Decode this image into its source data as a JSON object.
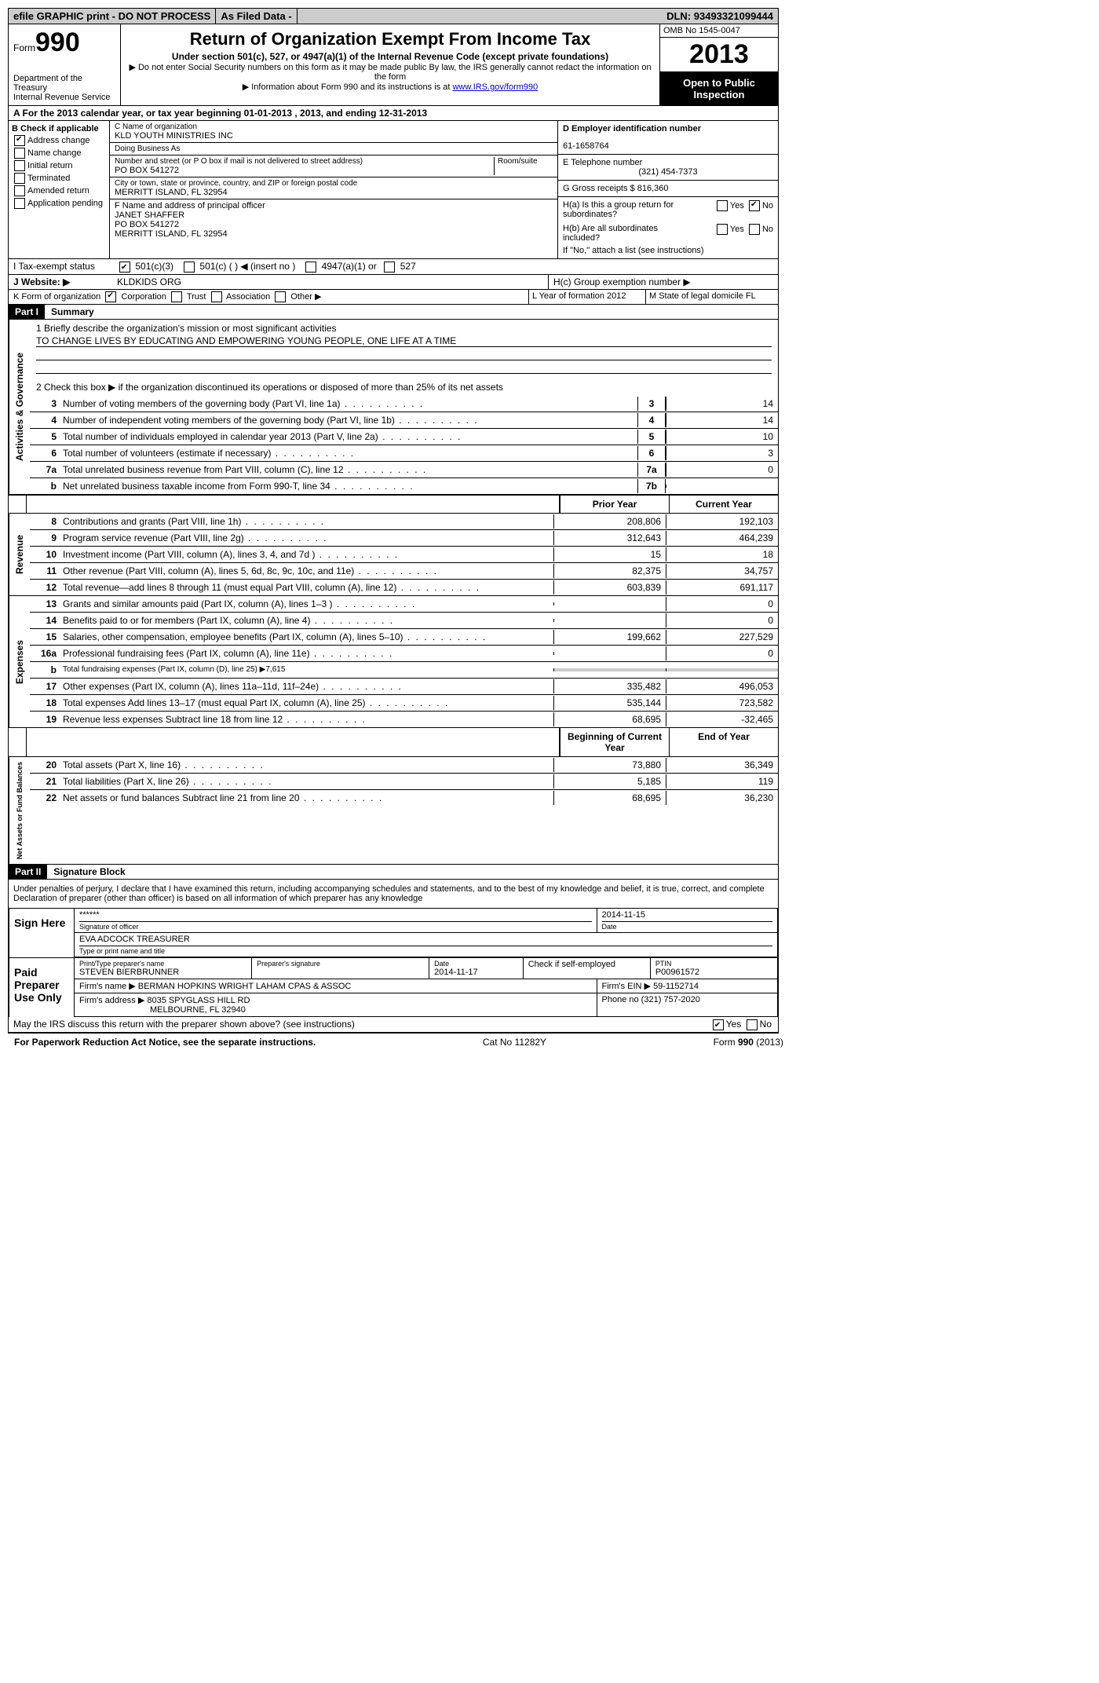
{
  "topbar": {
    "efile": "efile GRAPHIC print - DO NOT PROCESS",
    "asfiled": "As Filed Data -",
    "dln_label": "DLN:",
    "dln": "93493321099444"
  },
  "header": {
    "form_word": "Form",
    "form_num": "990",
    "dept": "Department of the Treasury",
    "irs": "Internal Revenue Service",
    "title": "Return of Organization Exempt From Income Tax",
    "subtitle": "Under section 501(c), 527, or 4947(a)(1) of the Internal Revenue Code (except private foundations)",
    "note1": "▶ Do not enter Social Security numbers on this form as it may be made public  By law, the IRS generally cannot redact the information on the form",
    "note2_pre": "▶ Information about Form 990 and its instructions is at ",
    "note2_link": "www.IRS.gov/form990",
    "omb": "OMB No  1545-0047",
    "year": "2013",
    "open": "Open to Public Inspection"
  },
  "section_a": "A  For the 2013 calendar year, or tax year beginning 01-01-2013     , 2013, and ending 12-31-2013",
  "col_b": {
    "header": "B  Check if applicable",
    "items": [
      {
        "label": "Address change",
        "checked": true
      },
      {
        "label": "Name change",
        "checked": false
      },
      {
        "label": "Initial return",
        "checked": false
      },
      {
        "label": "Terminated",
        "checked": false
      },
      {
        "label": "Amended return",
        "checked": false
      },
      {
        "label": "Application pending",
        "checked": false
      }
    ]
  },
  "col_c": {
    "name_label": "C Name of organization",
    "name": "KLD YOUTH MINISTRIES INC",
    "dba_label": "Doing Business As",
    "dba": "",
    "addr_label": "Number and street (or P O  box if mail is not delivered to street address)",
    "room_label": "Room/suite",
    "addr": "PO BOX 541272",
    "city_label": "City or town, state or province, country, and ZIP or foreign postal code",
    "city": "MERRITT ISLAND, FL  32954",
    "f_label": "F   Name and address of principal officer",
    "f_name": "JANET SHAFFER",
    "f_addr1": "PO BOX 541272",
    "f_addr2": "MERRITT ISLAND, FL  32954"
  },
  "col_d": {
    "ein_label": "D Employer identification number",
    "ein": "61-1658764",
    "tel_label": "E Telephone number",
    "tel": "(321) 454-7373",
    "gross_label": "G Gross receipts $",
    "gross": "816,360",
    "ha_label": "H(a)  Is this a group return for subordinates?",
    "ha_no_checked": true,
    "hb_label": "H(b)  Are all subordinates included?",
    "hb_note": "If \"No,\" attach a list  (see instructions)",
    "hc_label": "H(c)   Group exemption number ▶"
  },
  "row_i": {
    "label": "I   Tax-exempt status",
    "c3": "501(c)(3)",
    "c": "501(c) (  ) ◀ (insert no )",
    "a4947": "4947(a)(1) or",
    "s527": "527"
  },
  "row_j": {
    "label": "J   Website: ▶",
    "value": "KLDKIDS ORG"
  },
  "row_k": {
    "label": "K Form of organization",
    "corp": "Corporation",
    "trust": "Trust",
    "assoc": "Association",
    "other": "Other ▶",
    "l_label": "L Year of formation",
    "l_val": "2012",
    "m_label": "M State of legal domicile",
    "m_val": "FL"
  },
  "part1": {
    "header": "Part I",
    "title": "Summary",
    "mission_label": "1    Briefly describe the organization's mission or most significant activities",
    "mission": "TO CHANGE LIVES BY EDUCATING AND EMPOWERING YOUNG PEOPLE, ONE LIFE AT A TIME",
    "line2": "2    Check this box ▶      if the organization discontinued its operations or disposed of more than 25% of its net assets",
    "governance": [
      {
        "n": "3",
        "d": "Number of voting members of the governing body (Part VI, line 1a)",
        "ref": "3",
        "v": "14"
      },
      {
        "n": "4",
        "d": "Number of independent voting members of the governing body (Part VI, line 1b)",
        "ref": "4",
        "v": "14"
      },
      {
        "n": "5",
        "d": "Total number of individuals employed in calendar year 2013 (Part V, line 2a)",
        "ref": "5",
        "v": "10"
      },
      {
        "n": "6",
        "d": "Total number of volunteers (estimate if necessary)",
        "ref": "6",
        "v": "3"
      },
      {
        "n": "7a",
        "d": "Total unrelated business revenue from Part VIII, column (C), line 12",
        "ref": "7a",
        "v": "0"
      },
      {
        "n": "b",
        "d": "Net unrelated business taxable income from Form 990-T, line 34",
        "ref": "7b",
        "v": ""
      }
    ],
    "col_prior": "Prior Year",
    "col_curr": "Current Year",
    "revenue": [
      {
        "n": "8",
        "d": "Contributions and grants (Part VIII, line 1h)",
        "p": "208,806",
        "c": "192,103"
      },
      {
        "n": "9",
        "d": "Program service revenue (Part VIII, line 2g)",
        "p": "312,643",
        "c": "464,239"
      },
      {
        "n": "10",
        "d": "Investment income (Part VIII, column (A), lines 3, 4, and 7d )",
        "p": "15",
        "c": "18"
      },
      {
        "n": "11",
        "d": "Other revenue (Part VIII, column (A), lines 5, 6d, 8c, 9c, 10c, and 11e)",
        "p": "82,375",
        "c": "34,757"
      },
      {
        "n": "12",
        "d": "Total revenue—add lines 8 through 11 (must equal Part VIII, column (A), line 12)",
        "p": "603,839",
        "c": "691,117"
      }
    ],
    "expenses": [
      {
        "n": "13",
        "d": "Grants and similar amounts paid (Part IX, column (A), lines 1–3 )",
        "p": "",
        "c": "0"
      },
      {
        "n": "14",
        "d": "Benefits paid to or for members (Part IX, column (A), line 4)",
        "p": "",
        "c": "0"
      },
      {
        "n": "15",
        "d": "Salaries, other compensation, employee benefits (Part IX, column (A), lines 5–10)",
        "p": "199,662",
        "c": "227,529"
      },
      {
        "n": "16a",
        "d": "Professional fundraising fees (Part IX, column (A), line 11e)",
        "p": "",
        "c": "0"
      },
      {
        "n": "b",
        "d": "Total fundraising expenses (Part IX, column (D), line 25) ▶7,615",
        "p": "—",
        "c": "—"
      },
      {
        "n": "17",
        "d": "Other expenses (Part IX, column (A), lines 11a–11d, 11f–24e)",
        "p": "335,482",
        "c": "496,053"
      },
      {
        "n": "18",
        "d": "Total expenses  Add lines 13–17 (must equal Part IX, column (A), line 25)",
        "p": "535,144",
        "c": "723,582"
      },
      {
        "n": "19",
        "d": "Revenue less expenses  Subtract line 18 from line 12",
        "p": "68,695",
        "c": "-32,465"
      }
    ],
    "col_beg": "Beginning of Current Year",
    "col_end": "End of Year",
    "netassets": [
      {
        "n": "20",
        "d": "Total assets (Part X, line 16)",
        "p": "73,880",
        "c": "36,349"
      },
      {
        "n": "21",
        "d": "Total liabilities (Part X, line 26)",
        "p": "5,185",
        "c": "119"
      },
      {
        "n": "22",
        "d": "Net assets or fund balances  Subtract line 21 from line 20",
        "p": "68,695",
        "c": "36,230"
      }
    ],
    "vlabels": {
      "gov": "Activities & Governance",
      "rev": "Revenue",
      "exp": "Expenses",
      "net": "Net Assets or Fund Balances"
    }
  },
  "part2": {
    "header": "Part II",
    "title": "Signature Block",
    "perjury": "Under penalties of perjury, I declare that I have examined this return, including accompanying schedules and statements, and to the best of my knowledge and belief, it is true, correct, and complete  Declaration of preparer (other than officer) is based on all information of which preparer has any knowledge",
    "sign_here": "Sign Here",
    "sig_stars": "******",
    "sig_date": "2014-11-15",
    "sig_officer_lab": "Signature of officer",
    "sig_date_lab": "Date",
    "name_title": "EVA ADCOCK TREASURER",
    "name_title_lab": "Type or print name and title",
    "paid": "Paid Preparer Use Only",
    "prep_name_lab": "Print/Type preparer's name",
    "prep_name": "STEVEN BIERBRUNNER",
    "prep_sig_lab": "Preparer's signature",
    "prep_date_lab": "Date",
    "prep_date": "2014-11-17",
    "self_emp": "Check      if self-employed",
    "ptin_lab": "PTIN",
    "ptin": "P00961572",
    "firm_name_lab": "Firm's name     ▶",
    "firm_name": "BERMAN HOPKINS WRIGHT LAHAM CPAS & ASSOC",
    "firm_ein_lab": "Firm's EIN ▶",
    "firm_ein": "59-1152714",
    "firm_addr_lab": "Firm's address ▶",
    "firm_addr": "8035 SPYGLASS HILL RD",
    "firm_city": "MELBOURNE, FL  32940",
    "phone_lab": "Phone no",
    "phone": "(321) 757-2020",
    "discuss": "May the IRS discuss this return with the preparer shown above? (see instructions)",
    "yes": "Yes",
    "no": "No"
  },
  "footer": {
    "left": "For Paperwork Reduction Act Notice, see the separate instructions.",
    "mid": "Cat No  11282Y",
    "right": "Form 990 (2013)"
  }
}
